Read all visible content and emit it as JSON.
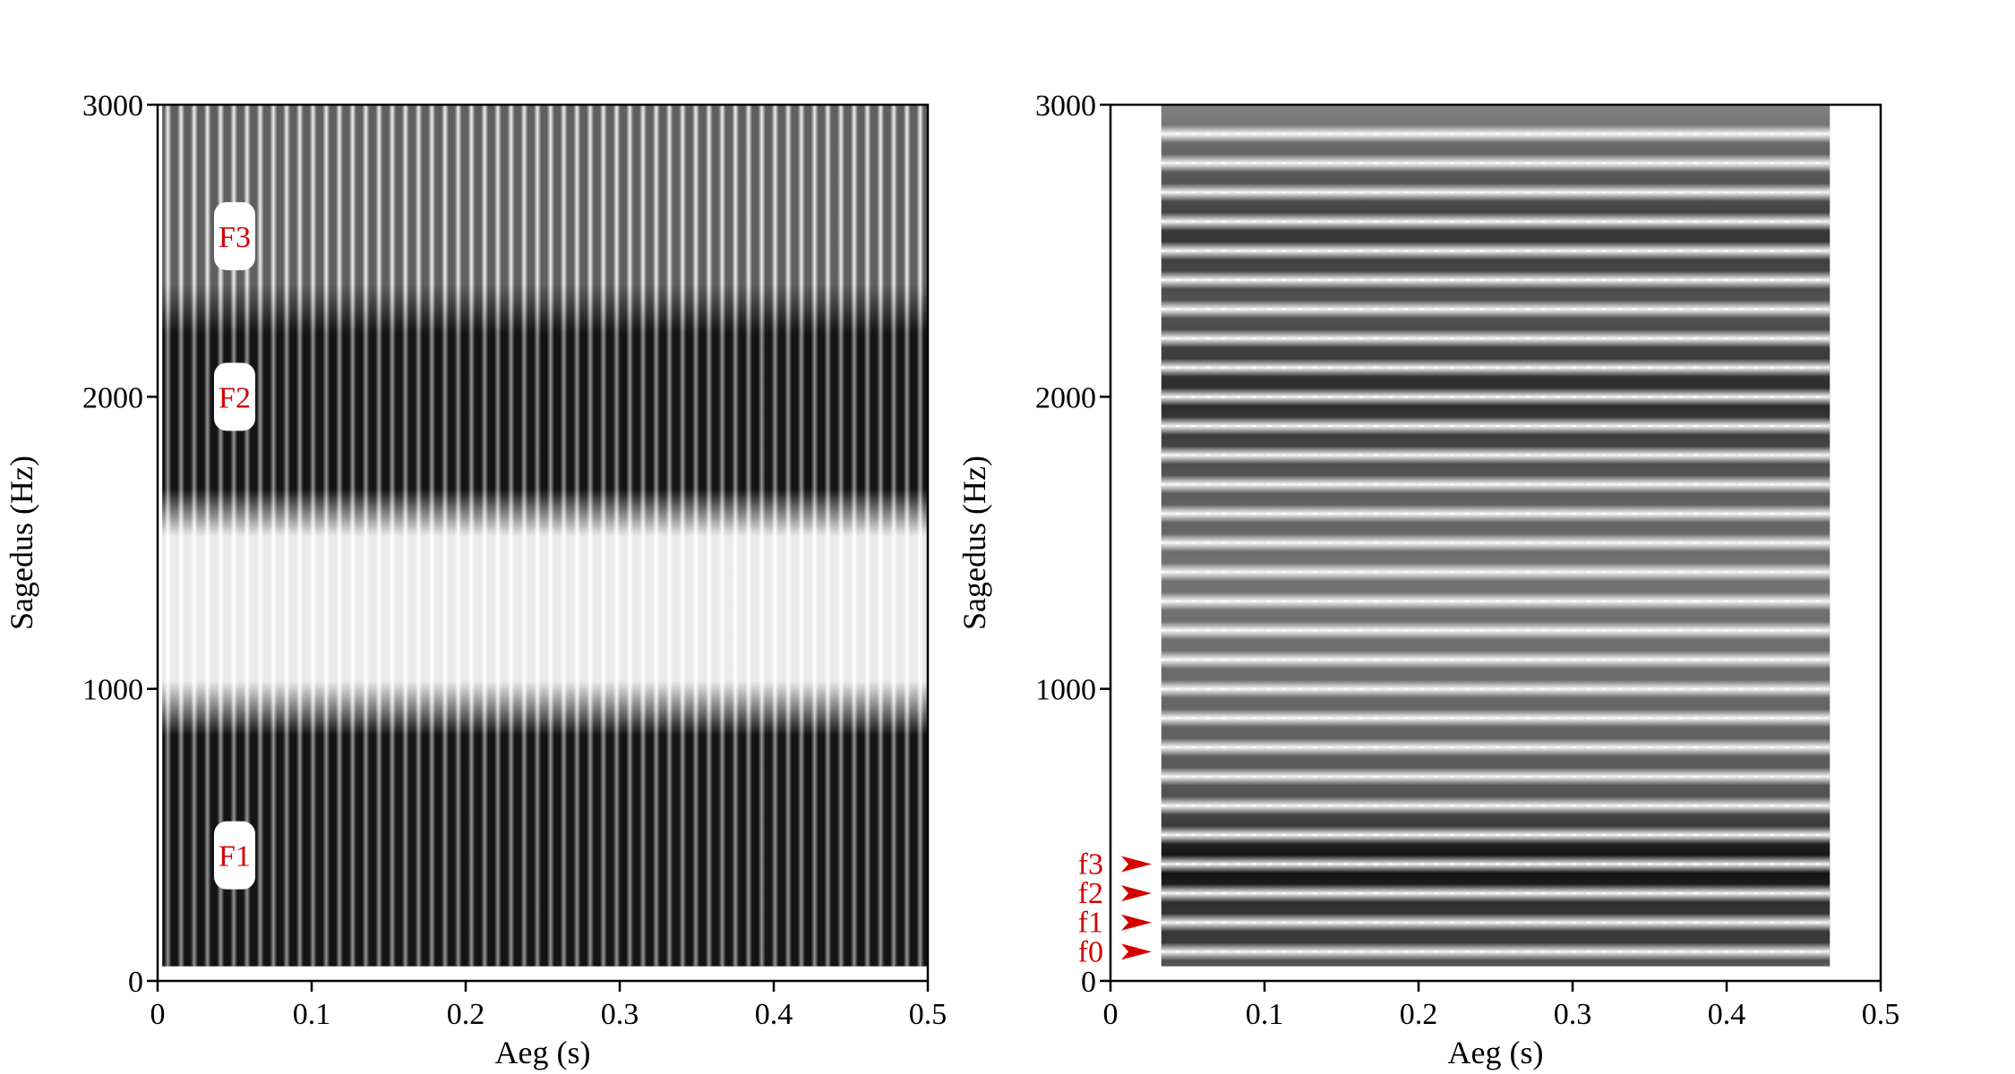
{
  "chart_data": [
    {
      "type": "heatmap",
      "variant": "wideband-spectrogram",
      "title": "",
      "xlabel": "Aeg (s)",
      "ylabel": "Sagedus (Hz)",
      "xlim": [
        0,
        0.5
      ],
      "ylim": [
        0,
        3000
      ],
      "xticks": [
        "0",
        "0.1",
        "0.2",
        "0.3",
        "0.4",
        "0.5"
      ],
      "yticks": [
        "0",
        "1000",
        "2000",
        "3000"
      ],
      "data_x_range": [
        0.003,
        0.5
      ],
      "data_y_range": [
        50,
        3000
      ],
      "glottal_pulse_count": 58,
      "bands": [
        {
          "from_hz": 50,
          "to_hz": 950,
          "level": "dark"
        },
        {
          "from_hz": 950,
          "to_hz": 1600,
          "level": "light"
        },
        {
          "from_hz": 1600,
          "to_hz": 2300,
          "level": "dark"
        },
        {
          "from_hz": 2300,
          "to_hz": 3000,
          "level": "medium"
        }
      ],
      "annotations": [
        {
          "label": "F1",
          "x": 0.05,
          "y": 430
        },
        {
          "label": "F2",
          "x": 0.05,
          "y": 2000
        },
        {
          "label": "F3",
          "x": 0.05,
          "y": 2550
        }
      ]
    },
    {
      "type": "heatmap",
      "variant": "narrowband-spectrogram",
      "title": "",
      "xlabel": "Aeg (s)",
      "ylabel": "Sagedus (Hz)",
      "xlim": [
        0,
        0.5
      ],
      "ylim": [
        0,
        3000
      ],
      "xticks": [
        "0",
        "0.1",
        "0.2",
        "0.3",
        "0.4",
        "0.5"
      ],
      "yticks": [
        "0",
        "1000",
        "2000",
        "3000"
      ],
      "data_x_range": [
        0.033,
        0.467
      ],
      "data_y_range": [
        50,
        3000
      ],
      "f0_hz": 100,
      "harmonic_frequencies_hz": [
        100,
        200,
        300,
        400,
        500,
        600,
        700,
        800,
        900,
        1000,
        1100,
        1200,
        1300,
        1400,
        1500,
        1600,
        1700,
        1800,
        1900,
        2000,
        2100,
        2200,
        2300,
        2400,
        2500,
        2600,
        2700,
        2800,
        2900
      ],
      "dark_regions_hz": [
        400,
        2000,
        2550
      ],
      "annotations": [
        {
          "label": "f0",
          "y": 100
        },
        {
          "label": "f1",
          "y": 200
        },
        {
          "label": "f2",
          "y": 300
        },
        {
          "label": "f3",
          "y": 400
        }
      ]
    }
  ],
  "colors": {
    "annotation": "#d40000",
    "axis": "#000000",
    "background": "#ffffff"
  }
}
